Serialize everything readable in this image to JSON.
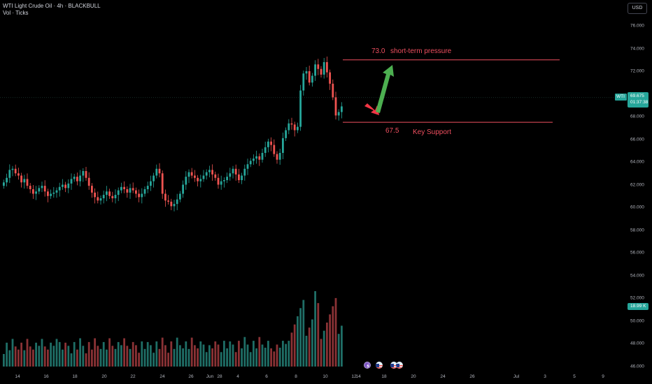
{
  "header": {
    "title": "WTI Light Crude Oil · 4h · BLACKBULL",
    "indicator": "Vol · Ticks"
  },
  "currency_button": "USD",
  "price_axis": [
    "76.000",
    "74.000",
    "72.000",
    "70.000",
    "68.000",
    "66.000",
    "64.000",
    "62.000",
    "60.000",
    "58.000",
    "56.000",
    "54.000",
    "52.000",
    "50.000",
    "48.000",
    "46.000"
  ],
  "time_axis": [
    "14",
    "16",
    "18",
    "20",
    "22",
    "24",
    "26",
    "28",
    "Jun",
    "4",
    "6",
    "8",
    "10",
    "12",
    "14",
    "18",
    "20",
    "24",
    "26",
    "Jul",
    "3",
    "5",
    "9"
  ],
  "symbol_tag": {
    "symbol": "WTI",
    "price": "69.675",
    "countdown": "01:37:38"
  },
  "volume_tag": "18.99 K",
  "annotations": {
    "resistance_value": "73.0",
    "resistance_label": "short-term pressure",
    "support_value": "67.5",
    "support_label": "Key Support"
  },
  "colors": {
    "up": "#26a69a",
    "down": "#ef5350",
    "annotation": "#ef4f5f",
    "arrow_up": "#4caf50",
    "arrow_down": "#f23645",
    "background": "#000000"
  },
  "chart_data": {
    "type": "candlestick",
    "symbol": "WTI",
    "interval": "4h",
    "ylim": [
      45.5,
      77
    ],
    "levels": [
      {
        "price": 73.0,
        "label": "short-term pressure"
      },
      {
        "price": 67.5,
        "label": "Key Support"
      }
    ],
    "last_price": 69.675,
    "close": [
      62.2,
      62.6,
      63.3,
      63.4,
      63.0,
      62.8,
      62.2,
      62.5,
      61.9,
      61.6,
      61.2,
      61.4,
      61.7,
      61.9,
      61.4,
      61.0,
      61.2,
      61.3,
      61.5,
      61.8,
      62.0,
      61.7,
      62.1,
      62.5,
      62.7,
      62.3,
      62.8,
      63.2,
      62.6,
      61.9,
      61.3,
      60.9,
      60.6,
      60.8,
      61.1,
      61.4,
      61.0,
      60.8,
      61.1,
      61.5,
      61.8,
      61.6,
      61.3,
      61.7,
      61.5,
      61.2,
      60.9,
      61.2,
      61.6,
      61.9,
      62.3,
      62.8,
      63.4,
      63.0,
      61.2,
      60.6,
      60.5,
      60.1,
      60.3,
      60.7,
      61.2,
      62.0,
      62.7,
      63.1,
      62.8,
      62.6,
      62.3,
      62.5,
      62.8,
      63.1,
      63.3,
      62.9,
      62.6,
      62.0,
      62.3,
      62.4,
      62.7,
      63.0,
      63.4,
      62.9,
      62.4,
      62.8,
      63.4,
      63.8,
      64.1,
      64.3,
      64.5,
      64.2,
      64.8,
      65.3,
      65.8,
      65.5,
      64.7,
      64.2,
      64.8,
      66.1,
      66.8,
      67.4,
      67.3,
      66.8,
      67.1,
      70.3,
      71.8,
      72.0,
      71.0,
      71.6,
      72.6,
      72.2,
      71.7,
      72.8,
      71.9,
      70.9,
      69.7,
      68.1,
      68.4,
      68.9
    ]
  }
}
